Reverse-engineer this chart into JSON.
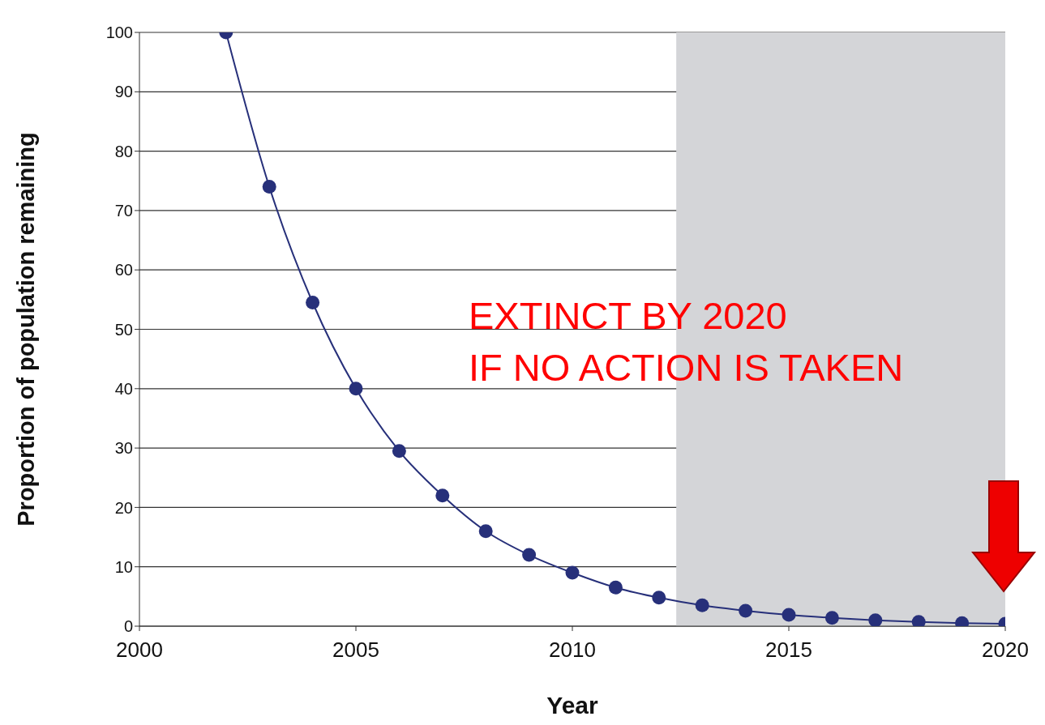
{
  "chart_data": {
    "type": "line",
    "xlabel": "Year",
    "ylabel": "Proportion of population remaining",
    "x": [
      2002,
      2003,
      2004,
      2005,
      2006,
      2007,
      2008,
      2009,
      2010,
      2011,
      2012,
      2013,
      2014,
      2015,
      2016,
      2017,
      2018,
      2019,
      2020
    ],
    "series": [
      {
        "color": "#27307a",
        "values": [
          100,
          74,
          54.5,
          40,
          29.5,
          22,
          16,
          12,
          9,
          6.5,
          4.8,
          3.5,
          2.6,
          1.9,
          1.4,
          1.0,
          0.7,
          0.5,
          0.4
        ]
      }
    ],
    "xlim": [
      2000,
      2020
    ],
    "xticks": [
      2000,
      2005,
      2010,
      2015,
      2020
    ],
    "ylim": [
      0,
      100
    ],
    "yticks": [
      0,
      10,
      20,
      30,
      40,
      50,
      60,
      70,
      80,
      90,
      100
    ],
    "grid": "y",
    "marker": "circle",
    "line_style": "solid",
    "bands": [
      {
        "axis": "x",
        "from": 2012.4,
        "to": 2020,
        "color": "#d4d5d8"
      }
    ],
    "annotations": [
      "EXTINCT BY 2020\nIF NO ACTION IS TAKEN"
    ]
  }
}
